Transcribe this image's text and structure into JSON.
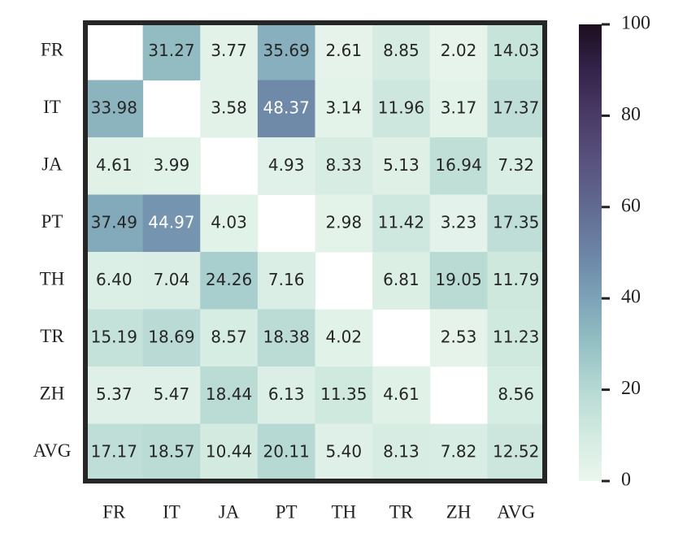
{
  "chart_data": {
    "type": "heatmap",
    "x": [
      "FR",
      "IT",
      "JA",
      "PT",
      "TH",
      "TR",
      "ZH",
      "AVG"
    ],
    "y": [
      "FR",
      "IT",
      "JA",
      "PT",
      "TH",
      "TR",
      "ZH",
      "AVG"
    ],
    "values": [
      [
        null,
        31.27,
        3.77,
        35.69,
        2.61,
        8.85,
        2.02,
        14.03
      ],
      [
        33.98,
        null,
        3.58,
        48.37,
        3.14,
        11.96,
        3.17,
        17.37
      ],
      [
        4.61,
        3.99,
        null,
        4.93,
        8.33,
        5.13,
        16.94,
        7.32
      ],
      [
        37.49,
        44.97,
        4.03,
        null,
        2.98,
        11.42,
        3.23,
        17.35
      ],
      [
        6.4,
        7.04,
        24.26,
        7.16,
        null,
        6.81,
        19.05,
        11.79
      ],
      [
        15.19,
        18.69,
        8.57,
        18.38,
        4.02,
        null,
        2.53,
        11.23
      ],
      [
        5.37,
        5.47,
        18.44,
        6.13,
        11.35,
        4.61,
        null,
        8.56
      ],
      [
        17.17,
        18.57,
        10.44,
        20.11,
        5.4,
        8.13,
        7.82,
        12.52
      ]
    ],
    "value_labels": [
      [
        null,
        "31.27",
        "3.77",
        "35.69",
        "2.61",
        "8.85",
        "2.02",
        "14.03"
      ],
      [
        "33.98",
        null,
        "3.58",
        "48.37",
        "3.14",
        "11.96",
        "3.17",
        "17.37"
      ],
      [
        "4.61",
        "3.99",
        null,
        "4.93",
        "8.33",
        "5.13",
        "16.94",
        "7.32"
      ],
      [
        "37.49",
        "44.97",
        "4.03",
        null,
        "2.98",
        "11.42",
        "3.23",
        "17.35"
      ],
      [
        "6.40",
        "7.04",
        "24.26",
        "7.16",
        null,
        "6.81",
        "19.05",
        "11.79"
      ],
      [
        "15.19",
        "18.69",
        "8.57",
        "18.38",
        "4.02",
        null,
        "2.53",
        "11.23"
      ],
      [
        "5.37",
        "5.47",
        "18.44",
        "6.13",
        "11.35",
        "4.61",
        null,
        "8.56"
      ],
      [
        "17.17",
        "18.57",
        "10.44",
        "20.11",
        "5.40",
        "8.13",
        "7.82",
        "12.52"
      ]
    ],
    "colormap": [
      "#ebf6ee",
      "#d3ebe1",
      "#b6d9d3",
      "#95c0c4",
      "#7ca3b7",
      "#6c84a6",
      "#616a91",
      "#58527e",
      "#4a3b66",
      "#34234a",
      "#1c0e20"
    ],
    "clim": [
      0,
      100
    ],
    "cticks": [
      0,
      20,
      40,
      60,
      80,
      100
    ]
  }
}
